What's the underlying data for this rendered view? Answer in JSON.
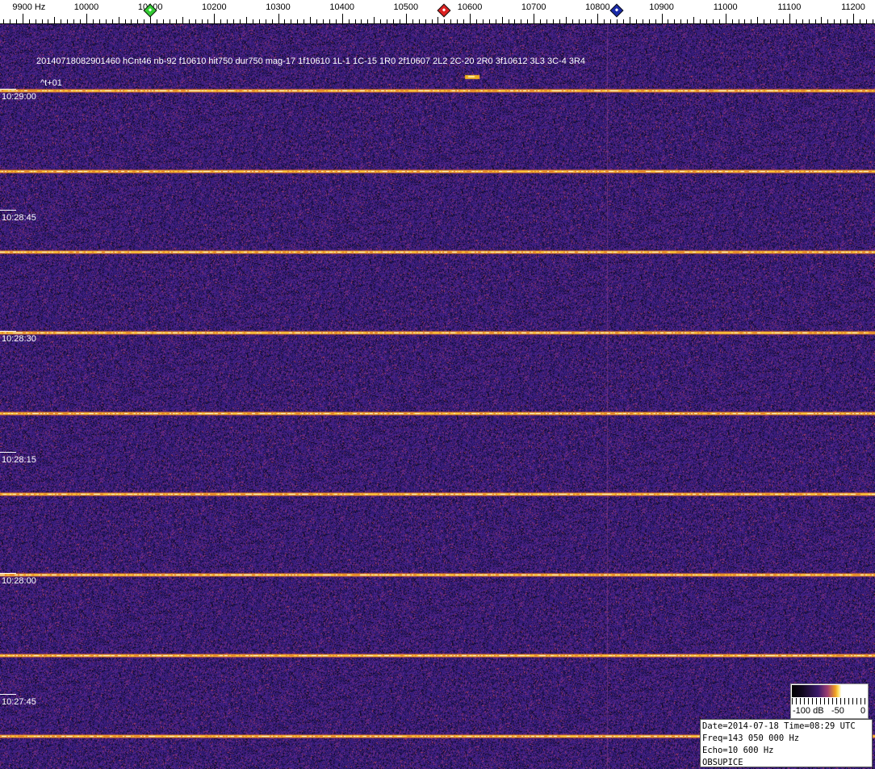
{
  "axis": {
    "unit": "Hz",
    "ticks": [
      9900,
      10000,
      10100,
      10200,
      10300,
      10400,
      10500,
      10600,
      10700,
      10800,
      10900,
      11000,
      11100,
      11200
    ],
    "first_label": "9900 Hz"
  },
  "markers": [
    {
      "name": "green",
      "freq": 10100,
      "color": "#33cc33"
    },
    {
      "name": "red",
      "freq": 10560,
      "color": "#dd2222"
    },
    {
      "name": "blue",
      "freq": 10830,
      "color": "#1a2aa8"
    }
  ],
  "detection": {
    "info": "20140718082901460 hCnt46 nb-92 f10610 hit750 dur750 mag-17 1f10610 1L-1 1C-15 1R0 2f10607 2L2 2C-20 2R0 3f10612 3L3 3C-4 3R4",
    "offset": "^t+01"
  },
  "time_labels": [
    "10:29:00",
    "10:28:45",
    "10:28:30",
    "10:28:15",
    "10:28:00",
    "10:27:45"
  ],
  "colorbar": {
    "labels": [
      "-100 dB",
      "-50",
      "0"
    ]
  },
  "status": {
    "line1": "Date=2014-07-18 Time=08:29 UTC",
    "line2": "Freq=143 050 000 Hz",
    "line3": "Echo=10 600 Hz",
    "line4": "OBSUPICE"
  },
  "chart_data": {
    "type": "heatmap",
    "xlabel": "Hz",
    "xlim": [
      9850,
      11230
    ],
    "x_ticks": [
      9900,
      10000,
      10100,
      10200,
      10300,
      10400,
      10500,
      10600,
      10700,
      10800,
      10900,
      11000,
      11100,
      11200
    ],
    "y_ticks": [
      "10:29:00",
      "10:28:45",
      "10:28:30",
      "10:28:15",
      "10:28:00",
      "10:27:45"
    ],
    "colorbar_range_db": [
      -100,
      0
    ],
    "grid": false
  }
}
